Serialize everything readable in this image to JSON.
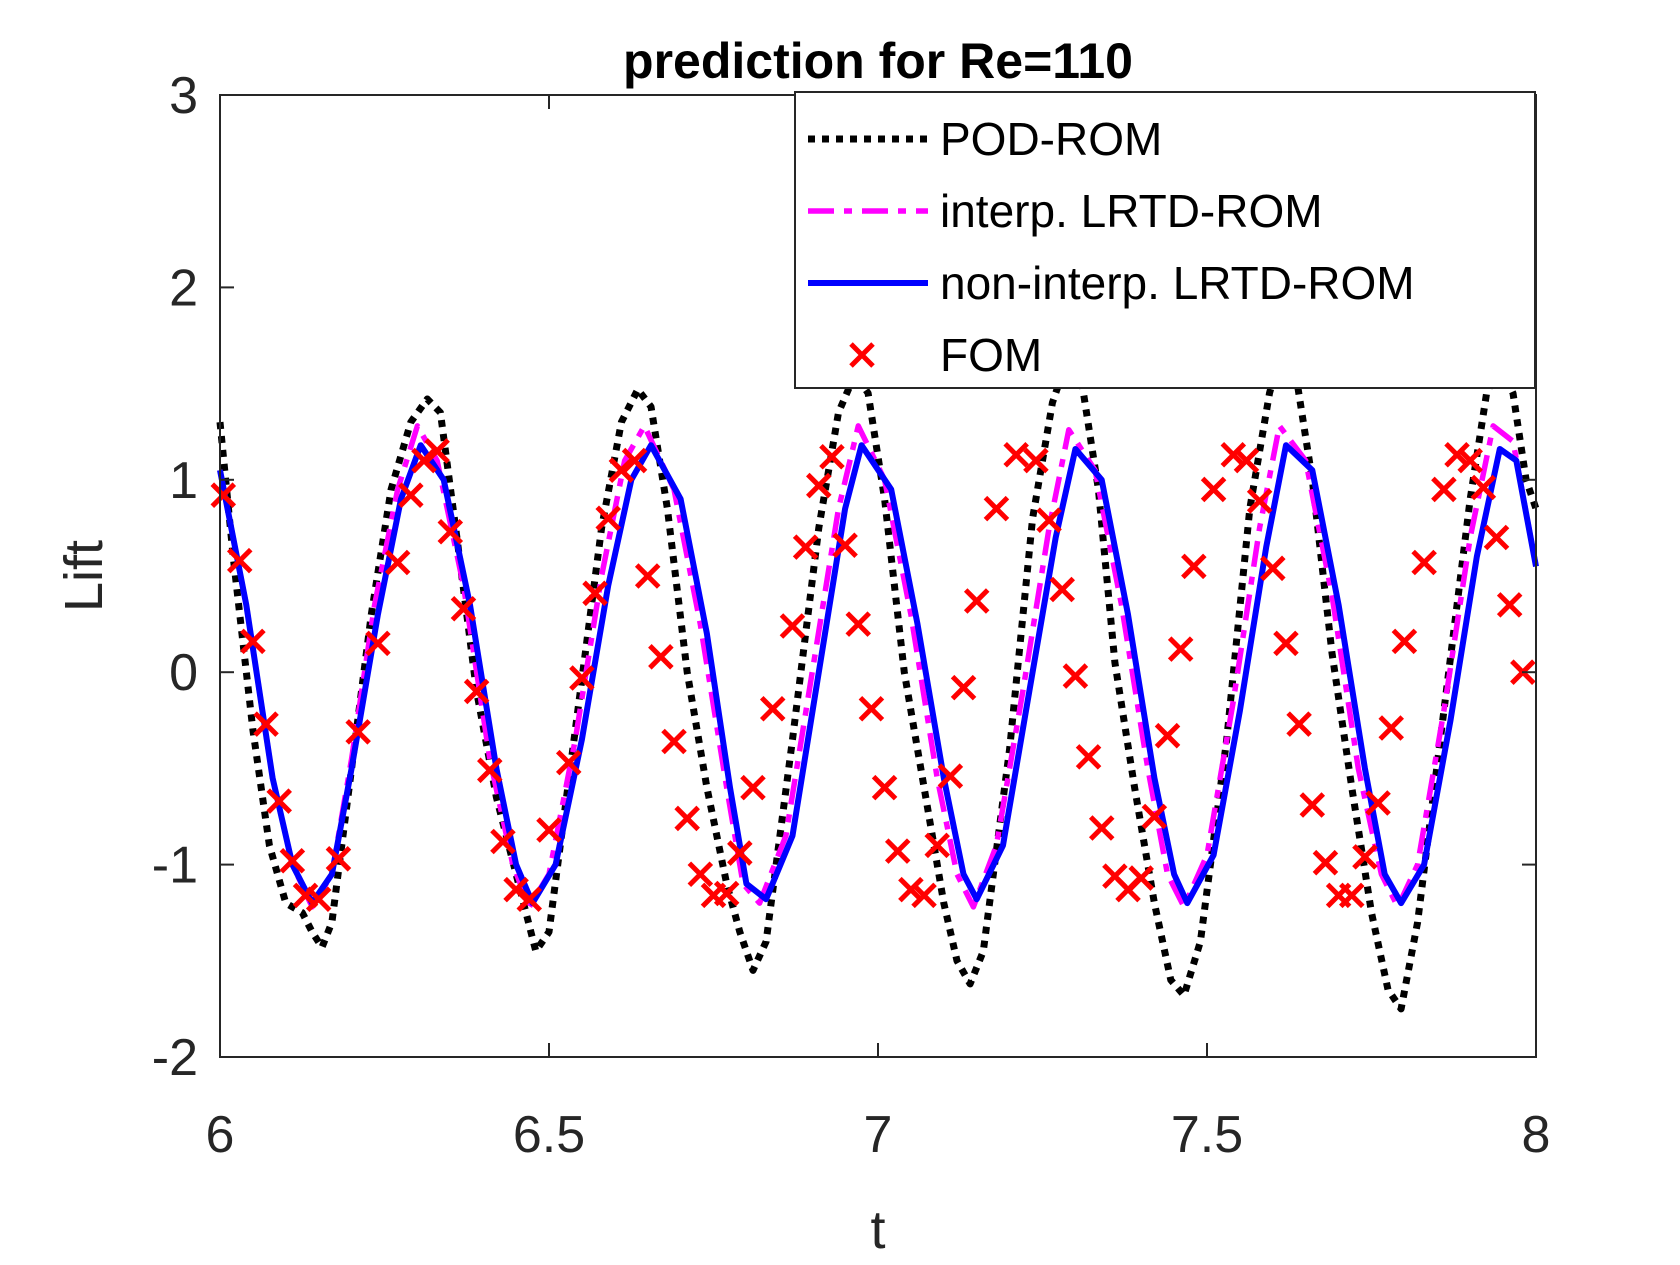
{
  "chart_data": {
    "type": "line",
    "title": "prediction for Re=110",
    "xlabel": "t",
    "ylabel": "Lift",
    "xlim": [
      6,
      8
    ],
    "ylim": [
      -2,
      3
    ],
    "xticks": [
      6,
      6.5,
      7,
      7.5,
      8
    ],
    "xtick_labels": [
      "6",
      "6.5",
      "7",
      "7.5",
      "8"
    ],
    "yticks": [
      -2,
      -1,
      0,
      1,
      2,
      3
    ],
    "ytick_labels": [
      "-2",
      "-1",
      "0",
      "1",
      "2",
      "3"
    ],
    "grid": false,
    "legend_position": "top-right",
    "series": [
      {
        "name": "POD-ROM",
        "color": "#000000",
        "style": "dotted",
        "x": [
          6.0,
          6.02,
          6.05,
          6.075,
          6.1,
          6.125,
          6.14,
          6.155,
          6.17,
          6.2,
          6.23,
          6.26,
          6.29,
          6.315,
          6.335,
          6.36,
          6.39,
          6.42,
          6.45,
          6.465,
          6.48,
          6.5,
          6.54,
          6.58,
          6.61,
          6.635,
          6.655,
          6.68,
          6.71,
          6.74,
          6.77,
          6.79,
          6.81,
          6.83,
          6.87,
          6.91,
          6.94,
          6.965,
          6.985,
          7.01,
          7.04,
          7.07,
          7.1,
          7.12,
          7.14,
          7.16,
          7.2,
          7.235,
          7.265,
          7.29,
          7.31,
          7.335,
          7.36,
          7.39,
          7.42,
          7.445,
          7.465,
          7.49,
          7.53,
          7.565,
          7.595,
          7.615,
          7.635,
          7.66,
          7.69,
          7.72,
          7.75,
          7.775,
          7.795,
          7.82,
          7.86,
          7.9,
          7.925,
          7.945,
          7.965,
          7.985,
          8.0
        ],
        "y": [
          1.3,
          0.6,
          -0.3,
          -0.9,
          -1.2,
          -1.25,
          -1.35,
          -1.43,
          -1.3,
          -0.5,
          0.3,
          0.95,
          1.3,
          1.42,
          1.35,
          0.7,
          -0.1,
          -0.65,
          -1.05,
          -1.25,
          -1.45,
          -1.35,
          -0.3,
          0.75,
          1.3,
          1.47,
          1.38,
          0.85,
          0.0,
          -0.6,
          -1.1,
          -1.35,
          -1.55,
          -1.4,
          -0.35,
          0.75,
          1.35,
          1.55,
          1.45,
          0.9,
          0.0,
          -0.6,
          -1.2,
          -1.5,
          -1.62,
          -1.45,
          -0.4,
          0.8,
          1.4,
          1.65,
          1.5,
          0.95,
          0.05,
          -0.6,
          -1.2,
          -1.6,
          -1.68,
          -1.4,
          -0.35,
          0.85,
          1.45,
          1.7,
          1.55,
          1.0,
          0.1,
          -0.6,
          -1.25,
          -1.65,
          -1.75,
          -1.3,
          -0.2,
          0.9,
          1.45,
          1.6,
          1.45,
          1.0,
          0.85
        ]
      },
      {
        "name": "interp. LRTD-ROM",
        "color": "#ff00ff",
        "style": "dashed",
        "x": [
          6.0,
          6.04,
          6.08,
          6.11,
          6.14,
          6.17,
          6.2,
          6.235,
          6.27,
          6.3,
          6.33,
          6.37,
          6.41,
          6.445,
          6.47,
          6.5,
          6.54,
          6.58,
          6.615,
          6.645,
          6.69,
          6.73,
          6.77,
          6.795,
          6.82,
          6.86,
          6.9,
          6.94,
          6.97,
          7.01,
          7.05,
          7.09,
          7.12,
          7.145,
          7.18,
          7.22,
          7.26,
          7.29,
          7.33,
          7.37,
          7.41,
          7.44,
          7.465,
          7.5,
          7.54,
          7.58,
          7.61,
          7.65,
          7.69,
          7.73,
          7.765,
          7.79,
          7.82,
          7.86,
          7.9,
          7.935,
          7.965,
          8.0
        ],
        "y": [
          1.05,
          0.35,
          -0.55,
          -1.0,
          -1.22,
          -1.05,
          -0.45,
          0.35,
          0.95,
          1.28,
          1.1,
          0.45,
          -0.45,
          -1.0,
          -1.22,
          -1.05,
          -0.35,
          0.5,
          1.1,
          1.28,
          0.95,
          0.25,
          -0.6,
          -1.1,
          -1.2,
          -0.85,
          0.0,
          0.85,
          1.28,
          1.0,
          0.3,
          -0.55,
          -1.05,
          -1.22,
          -0.9,
          -0.1,
          0.75,
          1.26,
          1.05,
          0.35,
          -0.5,
          -1.05,
          -1.22,
          -0.95,
          -0.15,
          0.75,
          1.28,
          1.1,
          0.4,
          -0.5,
          -1.05,
          -1.22,
          -1.0,
          -0.2,
          0.7,
          1.28,
          1.2,
          0.55
        ]
      },
      {
        "name": "non-interp. LRTD-ROM",
        "color": "#0000ff",
        "style": "solid",
        "x": [
          6.0,
          6.04,
          6.08,
          6.11,
          6.14,
          6.17,
          6.2,
          6.24,
          6.275,
          6.305,
          6.34,
          6.38,
          6.42,
          6.45,
          6.475,
          6.51,
          6.55,
          6.59,
          6.625,
          6.655,
          6.7,
          6.74,
          6.775,
          6.8,
          6.83,
          6.87,
          6.91,
          6.95,
          6.975,
          7.02,
          7.06,
          7.1,
          7.13,
          7.15,
          7.19,
          7.23,
          7.27,
          7.3,
          7.34,
          7.38,
          7.42,
          7.45,
          7.47,
          7.51,
          7.55,
          7.59,
          7.62,
          7.66,
          7.7,
          7.74,
          7.77,
          7.795,
          7.83,
          7.87,
          7.91,
          7.945,
          7.97,
          8.0
        ],
        "y": [
          1.05,
          0.35,
          -0.55,
          -1.0,
          -1.2,
          -1.05,
          -0.5,
          0.3,
          0.9,
          1.18,
          1.0,
          0.35,
          -0.5,
          -1.0,
          -1.2,
          -1.0,
          -0.35,
          0.45,
          1.0,
          1.18,
          0.9,
          0.2,
          -0.6,
          -1.1,
          -1.18,
          -0.85,
          0.0,
          0.85,
          1.18,
          0.95,
          0.25,
          -0.55,
          -1.05,
          -1.18,
          -0.9,
          -0.1,
          0.7,
          1.16,
          1.0,
          0.3,
          -0.55,
          -1.05,
          -1.2,
          -0.95,
          -0.2,
          0.65,
          1.18,
          1.05,
          0.35,
          -0.5,
          -1.05,
          -1.2,
          -1.0,
          -0.25,
          0.6,
          1.16,
          1.1,
          0.55
        ]
      },
      {
        "name": "FOM",
        "color": "#ff0000",
        "style": "markers-x",
        "x": [
          6.005,
          6.03,
          6.05,
          6.07,
          6.09,
          6.11,
          6.13,
          6.15,
          6.18,
          6.21,
          6.24,
          6.27,
          6.29,
          6.31,
          6.33,
          6.35,
          6.37,
          6.39,
          6.41,
          6.43,
          6.45,
          6.47,
          6.5,
          6.53,
          6.55,
          6.57,
          6.59,
          6.61,
          6.63,
          6.65,
          6.67,
          6.69,
          6.71,
          6.73,
          6.75,
          6.77,
          6.79,
          6.81,
          6.84,
          6.87,
          6.89,
          6.91,
          6.93,
          6.95,
          6.97,
          6.99,
          7.01,
          7.03,
          7.05,
          7.07,
          7.09,
          7.11,
          7.13,
          7.15,
          7.18,
          7.21,
          7.24,
          7.26,
          7.28,
          7.3,
          7.32,
          7.34,
          7.36,
          7.38,
          7.4,
          7.42,
          7.44,
          7.46,
          7.48,
          7.51,
          7.54,
          7.56,
          7.58,
          7.6,
          7.62,
          7.64,
          7.66,
          7.68,
          7.7,
          7.72,
          7.74,
          7.76,
          7.78,
          7.8,
          7.83,
          7.86,
          7.88,
          7.9,
          7.92,
          7.94,
          7.96,
          7.98
        ],
        "y": [
          0.92,
          0.58,
          0.16,
          -0.27,
          -0.67,
          -0.98,
          -1.16,
          -1.18,
          -0.97,
          -0.31,
          0.15,
          0.57,
          0.92,
          1.1,
          1.15,
          0.73,
          0.33,
          -0.1,
          -0.51,
          -0.88,
          -1.13,
          -1.18,
          -0.82,
          -0.47,
          -0.03,
          0.41,
          0.8,
          1.05,
          1.1,
          0.5,
          0.08,
          -0.36,
          -0.76,
          -1.05,
          -1.16,
          -1.15,
          -0.94,
          -0.6,
          -0.19,
          0.24,
          0.65,
          0.97,
          1.12,
          0.66,
          0.25,
          -0.19,
          -0.6,
          -0.93,
          -1.13,
          -1.16,
          -0.9,
          -0.54,
          -0.08,
          0.37,
          0.85,
          1.13,
          1.1,
          0.79,
          0.43,
          -0.02,
          -0.44,
          -0.81,
          -1.06,
          -1.13,
          -1.07,
          -0.75,
          -0.33,
          0.12,
          0.55,
          0.95,
          1.13,
          1.1,
          0.89,
          0.54,
          0.15,
          -0.27,
          -0.69,
          -0.99,
          -1.16,
          -1.16,
          -0.96,
          -0.68,
          -0.29,
          0.16,
          0.57,
          0.95,
          1.13,
          1.1,
          0.96,
          0.7,
          0.35,
          0.0
        ]
      }
    ]
  }
}
